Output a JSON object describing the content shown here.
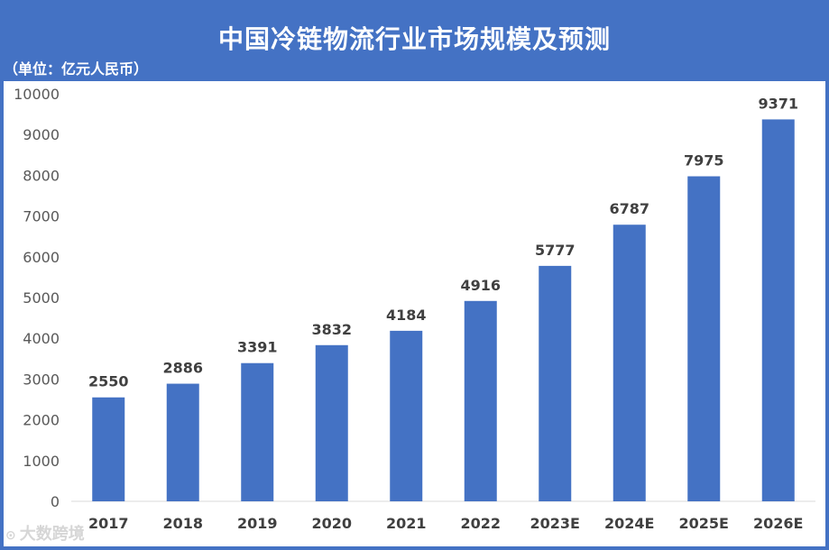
{
  "title": "中国冷链物流行业市场规模及预测",
  "unit_label": "（单位：亿元人民币）",
  "watermark": "大数跨境",
  "colors": {
    "background": "#4472C4",
    "bar": "#4472C4",
    "panel": "#FFFFFF"
  },
  "chart_data": {
    "type": "bar",
    "title": "中国冷链物流行业市场规模及预测",
    "categories": [
      "2017",
      "2018",
      "2019",
      "2020",
      "2021",
      "2022",
      "2023E",
      "2024E",
      "2025E",
      "2026E"
    ],
    "values": [
      2550,
      2886,
      3391,
      3832,
      4184,
      4916,
      5777,
      6787,
      7975,
      9371
    ],
    "ylim": [
      0,
      10000
    ],
    "yticks": [
      0,
      1000,
      2000,
      3000,
      4000,
      5000,
      6000,
      7000,
      8000,
      9000,
      10000
    ],
    "grid": false,
    "xlabel": "",
    "ylabel": ""
  }
}
